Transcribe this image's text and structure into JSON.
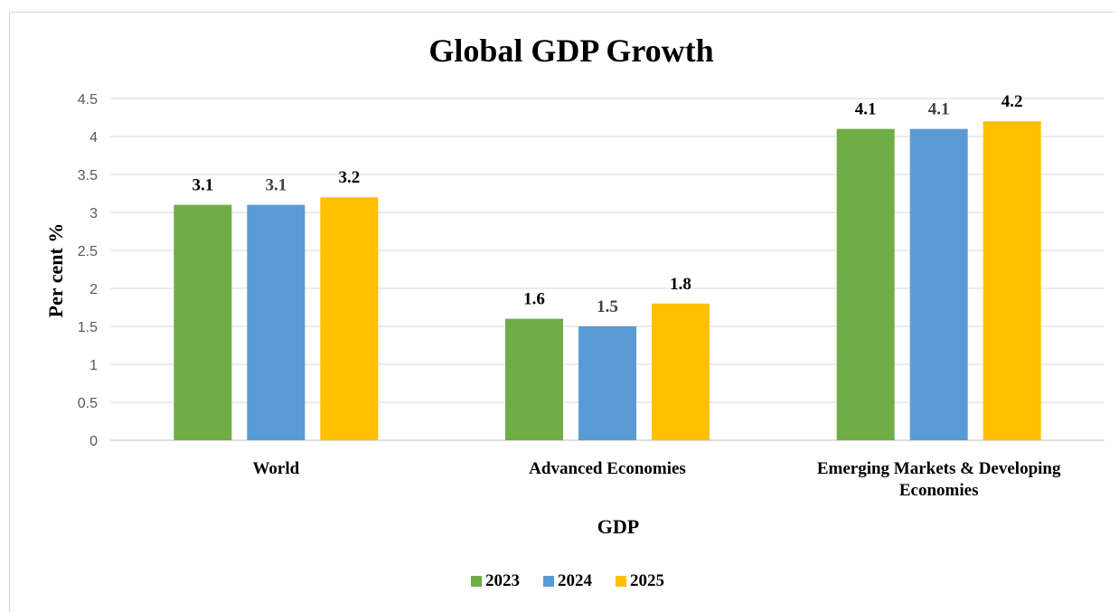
{
  "chart_data": {
    "type": "bar",
    "title": "Global GDP Growth",
    "xlabel": "GDP",
    "ylabel": "Per cent %",
    "ylim": [
      0,
      4.5
    ],
    "yticks": [
      "0",
      "0.5",
      "1",
      "1.5",
      "2",
      "2.5",
      "3",
      "3.5",
      "4",
      "4.5"
    ],
    "categories": [
      [
        "World"
      ],
      [
        "Advanced Economies"
      ],
      [
        "Emerging Markets & Developing",
        "Economies"
      ]
    ],
    "series": [
      {
        "name": "2023",
        "color": "#70ad47",
        "values": [
          3.1,
          1.6,
          4.1
        ],
        "label_color": "#000000"
      },
      {
        "name": "2024",
        "color": "#5b9bd5",
        "values": [
          3.1,
          1.5,
          4.1
        ],
        "label_color": "#404040"
      },
      {
        "name": "2025",
        "color": "#ffc000",
        "values": [
          3.2,
          1.8,
          4.2
        ],
        "label_color": "#000000"
      }
    ],
    "grid": true,
    "legend_position": "bottom"
  }
}
